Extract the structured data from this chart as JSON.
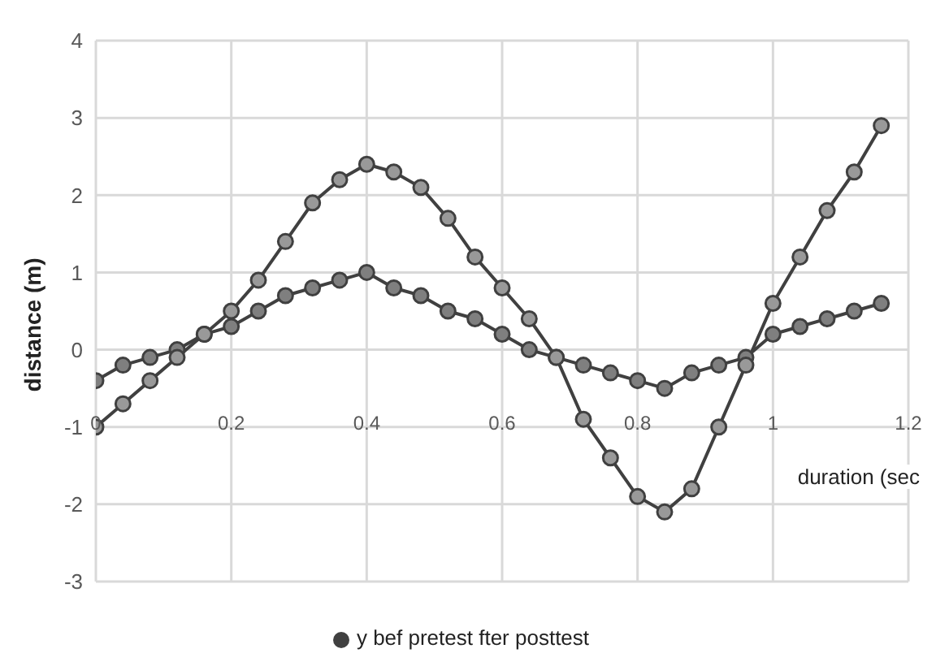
{
  "chart_data": {
    "type": "line",
    "xlabel": "duration (sec",
    "ylabel": "distance (m)",
    "x": [
      0,
      0.04,
      0.08,
      0.12,
      0.16,
      0.2,
      0.24,
      0.28,
      0.32,
      0.36,
      0.4,
      0.44,
      0.48,
      0.52,
      0.56,
      0.6,
      0.64,
      0.68,
      0.72,
      0.76,
      0.8,
      0.84,
      0.88,
      0.92,
      0.96,
      1,
      1.04,
      1.08,
      1.12,
      1.16
    ],
    "series": [
      {
        "color": "#7f7f7f",
        "values": [
          -0.4,
          -0.2,
          -0.1,
          0,
          0.2,
          0.3,
          0.5,
          0.7,
          0.8,
          0.9,
          1,
          0.8,
          0.7,
          0.5,
          0.4,
          0.2,
          0,
          -0.1,
          -0.2,
          -0.3,
          -0.4,
          -0.5,
          -0.3,
          -0.2,
          -0.1,
          0.2,
          0.3,
          0.4,
          0.5,
          0.6
        ]
      },
      {
        "name": "y bef  pretest  fter   posttest",
        "color": "#999999",
        "values": [
          -1,
          -0.7,
          -0.4,
          -0.1,
          0.2,
          0.5,
          0.9,
          1.4,
          1.9,
          2.2,
          2.4,
          2.3,
          2.1,
          1.7,
          1.2,
          0.8,
          0.4,
          -0.1,
          -0.9,
          -1.4,
          -1.9,
          -2.1,
          -1.8,
          -1,
          -0.2,
          0.6,
          1.2,
          1.8,
          2.3,
          2.9
        ]
      }
    ],
    "xlim": [
      0,
      1.2
    ],
    "xticks": [
      0,
      0.2,
      0.4,
      0.6,
      0.8,
      1,
      1.2
    ],
    "ylim": [
      -3,
      4
    ],
    "yticks": [
      -3,
      -2,
      -1,
      0,
      1,
      2,
      3,
      4
    ],
    "grid": true,
    "legend": "bottom",
    "marker": "circle",
    "line_style": "solid"
  }
}
